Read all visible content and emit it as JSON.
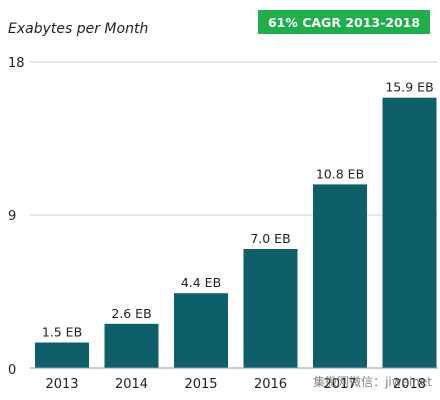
{
  "chart_data": {
    "type": "bar",
    "ylabel": "Exabytes per Month",
    "categories": [
      "2013",
      "2014",
      "2015",
      "2016",
      "2017",
      "2018"
    ],
    "values": [
      1.5,
      2.6,
      4.4,
      7.0,
      10.8,
      15.9
    ],
    "data_labels": [
      "1.5 EB",
      "2.6 EB",
      "4.4 EB",
      "7.0 EB",
      "10.8 EB",
      "15.9 EB"
    ],
    "yticks": [
      "0",
      "9",
      "18"
    ],
    "ytick_values": [
      0,
      9,
      18
    ],
    "ylim": [
      0,
      18
    ],
    "grid": true,
    "bar_color": "#0f5f6b",
    "annotation": "61% CAGR 2013-2018",
    "annotation_color": "#1fae4b"
  },
  "watermark": "集微网微信：jiweinet"
}
